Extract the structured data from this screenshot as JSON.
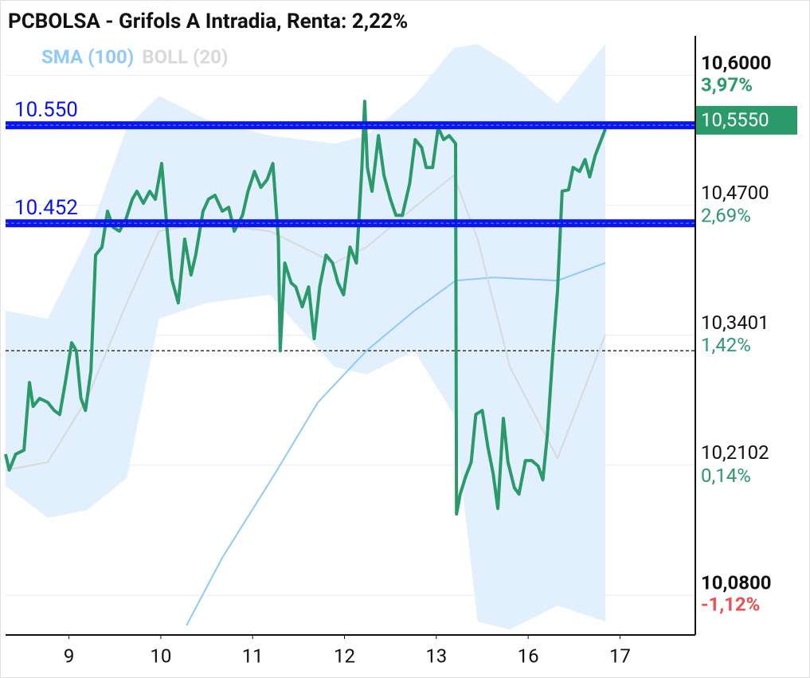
{
  "chart_data": {
    "type": "line",
    "title": "PCBOLSA - Grifols A Intradia, Renta: 2,22%",
    "xlim": [
      -0.69,
      6.82
    ],
    "xticks": [
      {
        "value": 0,
        "label": "9"
      },
      {
        "value": 1,
        "label": "10"
      },
      {
        "value": 2,
        "label": "11"
      },
      {
        "value": 3,
        "label": "12"
      },
      {
        "value": 4,
        "label": "13"
      },
      {
        "value": 5,
        "label": "16"
      },
      {
        "value": 6,
        "label": "17"
      }
    ],
    "ylim": [
      10.042,
      10.637
    ],
    "yticks": [
      {
        "value": 10.6,
        "label": "10,6000"
      },
      {
        "value": 10.47,
        "label": "10,4700"
      },
      {
        "value": 10.3401,
        "label": "10,3401"
      },
      {
        "value": 10.2102,
        "label": "10,2102"
      },
      {
        "value": 10.08,
        "label": "10,0800"
      }
    ],
    "y2lim": [
      -1.5,
      4.33
    ],
    "y2ticks": [
      {
        "value": 3.97,
        "label": "3,97%"
      },
      {
        "value": 2.69,
        "label": "2,69%"
      },
      {
        "value": 1.42,
        "label": "1,42%"
      },
      {
        "value": 0.14,
        "label": "0,14%"
      },
      {
        "value": -1.12,
        "label": "-1,12%"
      }
    ],
    "grid": true,
    "series": [
      {
        "name": "SMA (100)",
        "color": "#90caf9",
        "x": [
          1.28,
          1.67,
          2.24,
          2.71,
          3.24,
          3.76,
          4.21,
          4.62,
          5.32,
          5.84
        ],
        "values": [
          10.05,
          10.1177,
          10.2013,
          10.2729,
          10.3246,
          10.3644,
          10.3947,
          10.3979,
          10.3947,
          10.4123
        ]
      },
      {
        "name": "BOLL (20)",
        "color": "#d9d9d9",
        "band_color": "#e1f0fc",
        "x": [
          -0.69,
          -0.23,
          0.2,
          0.63,
          0.98,
          1.5,
          2.19,
          2.89,
          3.24,
          3.76,
          4.19,
          4.45,
          4.8,
          5.32,
          5.84
        ],
        "values": [
          10.2052,
          10.2132,
          10.2769,
          10.3725,
          10.4441,
          10.4521,
          10.4441,
          10.4123,
          10.4282,
          10.468,
          10.4999,
          10.4362,
          10.3087,
          10.2171,
          10.3406
        ],
        "upper": [
          10.3645,
          10.3566,
          10.4362,
          10.5477,
          10.5795,
          10.5556,
          10.5397,
          10.5317,
          10.5397,
          10.5795,
          10.6273,
          10.6313,
          10.6114,
          10.5716,
          10.6313
        ],
        "lower": [
          10.1894,
          10.1576,
          10.1655,
          10.1973,
          10.3566,
          10.3725,
          10.3805,
          10.3087,
          10.3008,
          10.3246,
          10.2609,
          10.0539,
          10.0459,
          10.0698,
          10.0539
        ]
      },
      {
        "color": "#2a9a6a",
        "x": [
          -0.69,
          -0.65,
          -0.58,
          -0.49,
          -0.43,
          -0.39,
          -0.32,
          -0.23,
          -0.16,
          -0.1,
          -0.04,
          0.03,
          0.08,
          0.13,
          0.18,
          0.24,
          0.29,
          0.36,
          0.42,
          0.48,
          0.55,
          0.62,
          0.69,
          0.74,
          0.81,
          0.88,
          0.94,
          1.01,
          1.07,
          1.12,
          1.19,
          1.26,
          1.33,
          1.38,
          1.46,
          1.52,
          1.59,
          1.67,
          1.74,
          1.8,
          1.89,
          1.95,
          2.02,
          2.09,
          2.16,
          2.22,
          2.28,
          2.3,
          2.35,
          2.42,
          2.47,
          2.54,
          2.61,
          2.67,
          2.73,
          2.8,
          2.87,
          2.93,
          2.99,
          3.06,
          3.13,
          3.19,
          3.22,
          3.25,
          3.3,
          3.37,
          3.43,
          3.5,
          3.56,
          3.63,
          3.71,
          3.77,
          3.84,
          3.89,
          3.96,
          4.02,
          4.08,
          4.14,
          4.21,
          4.22,
          4.26,
          4.32,
          4.38,
          4.43,
          4.5,
          4.56,
          4.62,
          4.67,
          4.73,
          4.78,
          4.85,
          4.9,
          4.97,
          5.04,
          5.11,
          5.16,
          5.21,
          5.27,
          5.32,
          5.37,
          5.44,
          5.49,
          5.56,
          5.62,
          5.67,
          5.73,
          5.84
        ],
        "values": [
          10.2211,
          10.2052,
          10.2211,
          10.2251,
          10.2928,
          10.2689,
          10.2769,
          10.2729,
          10.2649,
          10.2609,
          10.2928,
          10.3326,
          10.3246,
          10.2769,
          10.2649,
          10.3047,
          10.4202,
          10.4282,
          10.4641,
          10.4481,
          10.4441,
          10.4561,
          10.476,
          10.484,
          10.472,
          10.484,
          10.476,
          10.5118,
          10.4441,
          10.3964,
          10.3725,
          10.4362,
          10.4003,
          10.4202,
          10.4641,
          10.476,
          10.48,
          10.4641,
          10.468,
          10.4441,
          10.46,
          10.484,
          10.5038,
          10.4879,
          10.4959,
          10.5118,
          10.4362,
          10.3246,
          10.4123,
          10.3924,
          10.3884,
          10.3685,
          10.3884,
          10.3366,
          10.3884,
          10.4202,
          10.4123,
          10.3924,
          10.3805,
          10.4282,
          10.4123,
          10.5078,
          10.574,
          10.5078,
          10.484,
          10.5397,
          10.4999,
          10.476,
          10.46,
          10.46,
          10.4919,
          10.5357,
          10.5278,
          10.5078,
          10.5078,
          10.5477,
          10.5357,
          10.5397,
          10.5317,
          10.1614,
          10.1813,
          10.1988,
          10.2132,
          10.2609,
          10.2649,
          10.2291,
          10.2012,
          10.1669,
          10.257,
          10.2132,
          10.1876,
          10.1813,
          10.2148,
          10.2148,
          10.2092,
          10.1956,
          10.241,
          10.3246,
          10.3844,
          10.4841,
          10.4855,
          10.5078,
          10.5038,
          10.5158,
          10.4983,
          10.5198,
          10.5461
        ]
      }
    ],
    "levels": {
      "color": "#0a14f0",
      "items": [
        {
          "value": 10.55,
          "label": "10.550"
        },
        {
          "value": 10.452,
          "label": "10.452"
        }
      ]
    },
    "last_price": {
      "value": 10.555,
      "label": "10,5550",
      "color": "#2a9a6a"
    },
    "reference_level": 10.3246
  }
}
